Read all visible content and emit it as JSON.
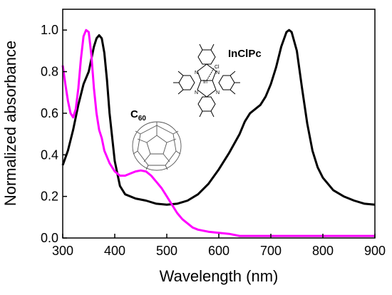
{
  "chart_data": {
    "type": "line",
    "xlabel": "Wavelength (nm)",
    "ylabel": "Normalized absorbance",
    "xlim": [
      300,
      900
    ],
    "ylim": [
      0.0,
      1.1
    ],
    "x_ticks": [
      "300",
      "400",
      "500",
      "600",
      "700",
      "800",
      "900"
    ],
    "y_ticks": [
      "0.0",
      "0.2",
      "0.4",
      "0.6",
      "0.8",
      "1.0"
    ],
    "grid": false,
    "legend": "none",
    "annotations": [
      {
        "text": "InClPc"
      },
      {
        "text": "C",
        "subscript": "60"
      }
    ],
    "molecule_labels": {
      "metal": "In",
      "ligand": "Cl",
      "nitrogen": "N"
    },
    "series": [
      {
        "color": "#000000",
        "x": [
          300,
          310,
          320,
          330,
          340,
          350,
          360,
          365,
          370,
          375,
          380,
          385,
          390,
          400,
          410,
          420,
          440,
          460,
          480,
          500,
          520,
          540,
          560,
          580,
          600,
          620,
          640,
          650,
          660,
          670,
          680,
          690,
          700,
          710,
          720,
          730,
          735,
          740,
          750,
          760,
          770,
          780,
          790,
          800,
          820,
          840,
          860,
          880,
          900
        ],
        "y": [
          0.35,
          0.42,
          0.52,
          0.64,
          0.74,
          0.8,
          0.92,
          0.96,
          0.975,
          0.96,
          0.89,
          0.76,
          0.6,
          0.37,
          0.25,
          0.21,
          0.19,
          0.18,
          0.165,
          0.16,
          0.165,
          0.18,
          0.21,
          0.26,
          0.33,
          0.41,
          0.5,
          0.56,
          0.6,
          0.62,
          0.64,
          0.68,
          0.74,
          0.82,
          0.92,
          0.99,
          1.0,
          0.99,
          0.9,
          0.72,
          0.55,
          0.42,
          0.34,
          0.29,
          0.23,
          0.2,
          0.18,
          0.165,
          0.16
        ]
      },
      {
        "color": "#ff00ff",
        "x": [
          300,
          305,
          310,
          315,
          320,
          325,
          330,
          335,
          340,
          345,
          350,
          355,
          360,
          365,
          370,
          375,
          380,
          390,
          400,
          410,
          420,
          430,
          440,
          450,
          460,
          470,
          480,
          490,
          500,
          510,
          520,
          530,
          540,
          550,
          560,
          580,
          600,
          620,
          640,
          660,
          680,
          700,
          750,
          800,
          850,
          900
        ],
        "y": [
          0.83,
          0.74,
          0.66,
          0.6,
          0.58,
          0.62,
          0.72,
          0.86,
          0.97,
          1.0,
          0.99,
          0.88,
          0.72,
          0.6,
          0.52,
          0.48,
          0.42,
          0.36,
          0.32,
          0.3,
          0.3,
          0.31,
          0.32,
          0.325,
          0.32,
          0.3,
          0.27,
          0.24,
          0.2,
          0.16,
          0.12,
          0.09,
          0.07,
          0.05,
          0.04,
          0.03,
          0.025,
          0.02,
          0.01,
          0.01,
          0.01,
          0.01,
          0.01,
          0.01,
          0.01,
          0.01
        ]
      }
    ]
  }
}
